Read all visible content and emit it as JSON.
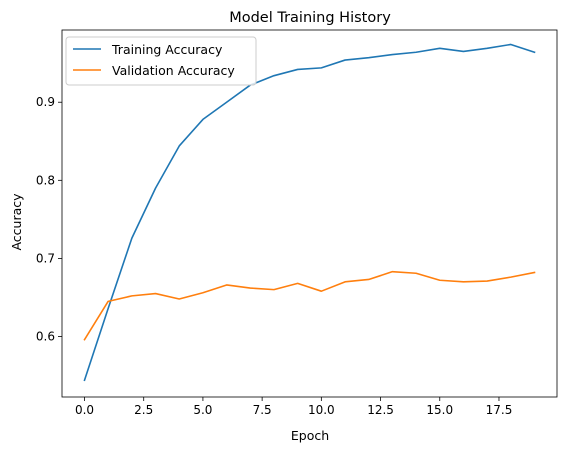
{
  "chart_data": {
    "type": "line",
    "title": "Model Training History",
    "xlabel": "Epoch",
    "ylabel": "Accuracy",
    "x": [
      0,
      1,
      2,
      3,
      4,
      5,
      6,
      7,
      8,
      9,
      10,
      11,
      12,
      13,
      14,
      15,
      16,
      17,
      18,
      19
    ],
    "xlim": [
      -0.95,
      19.95
    ],
    "ylim": [
      0.5225,
      0.9925
    ],
    "xticks": [
      0,
      2.5,
      5,
      7.5,
      10,
      12.5,
      15,
      17.5
    ],
    "xtick_labels": [
      "0.0",
      "2.5",
      "5.0",
      "7.5",
      "10.0",
      "12.5",
      "15.0",
      "17.5"
    ],
    "yticks": [
      0.6,
      0.7,
      0.8,
      0.9
    ],
    "ytick_labels": [
      "0.6",
      "0.7",
      "0.8",
      "0.9"
    ],
    "grid": false,
    "legend_position": "upper-left",
    "series": [
      {
        "name": "Training Accuracy",
        "color": "#1f77b4",
        "values": [
          0.544,
          0.636,
          0.726,
          0.79,
          0.844,
          0.878,
          0.9,
          0.922,
          0.934,
          0.942,
          0.944,
          0.954,
          0.957,
          0.961,
          0.964,
          0.969,
          0.965,
          0.969,
          0.974,
          0.964
        ]
      },
      {
        "name": "Validation Accuracy",
        "color": "#ff7f0e",
        "values": [
          0.596,
          0.645,
          0.652,
          0.655,
          0.648,
          0.656,
          0.666,
          0.662,
          0.66,
          0.668,
          0.658,
          0.67,
          0.673,
          0.683,
          0.681,
          0.672,
          0.67,
          0.671,
          0.676,
          0.682
        ]
      }
    ]
  }
}
